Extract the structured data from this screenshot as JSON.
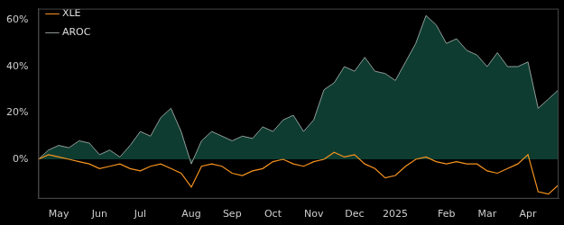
{
  "chart_data": {
    "type": "line",
    "categories": [
      null,
      null,
      "May",
      null,
      null,
      null,
      "Jun",
      null,
      null,
      null,
      "Jul",
      null,
      null,
      null,
      null,
      "Aug",
      null,
      null,
      null,
      "Sep",
      null,
      null,
      null,
      "Oct",
      null,
      null,
      null,
      "Nov",
      null,
      null,
      null,
      "Dec",
      null,
      null,
      null,
      "2025",
      null,
      null,
      null,
      null,
      "Feb",
      null,
      null,
      null,
      "Mar",
      null,
      null,
      null,
      "Apr",
      null,
      null,
      null
    ],
    "series": [
      {
        "name": "AROC",
        "color": "#b4bcb8",
        "values": [
          0,
          4,
          6,
          5,
          8,
          7,
          2,
          4,
          1,
          6,
          12,
          10,
          18,
          22,
          12,
          -2,
          8,
          12,
          10,
          8,
          10,
          9,
          14,
          12,
          17,
          19,
          12,
          17,
          30,
          33,
          40,
          38,
          44,
          38,
          37,
          34,
          42,
          50,
          62,
          58,
          50,
          52,
          47,
          45,
          40,
          46,
          40,
          40,
          42,
          22,
          26,
          30
        ]
      },
      {
        "name": "XLE",
        "color": "#f7931e",
        "values": [
          0,
          2,
          1,
          0,
          -1,
          -2,
          -4,
          -3,
          -2,
          -4,
          -5,
          -3,
          -2,
          -4,
          -6,
          -12,
          -3,
          -2,
          -3,
          -6,
          -7,
          -5,
          -4,
          -1,
          0,
          -2,
          -3,
          -1,
          0,
          3,
          1,
          2,
          -2,
          -4,
          -8,
          -7,
          -3,
          0,
          1,
          -1,
          -2,
          -1,
          -2,
          -2,
          -5,
          -6,
          -4,
          -2,
          2,
          -14,
          -15,
          -11
        ]
      }
    ],
    "ylim": [
      -17,
      65
    ],
    "yticks": [
      {
        "value": 0,
        "label": "0%"
      },
      {
        "value": 20,
        "label": "20%"
      },
      {
        "value": 40,
        "label": "40%"
      },
      {
        "value": 60,
        "label": "60%"
      }
    ],
    "grid": false,
    "legend": "upper left"
  }
}
